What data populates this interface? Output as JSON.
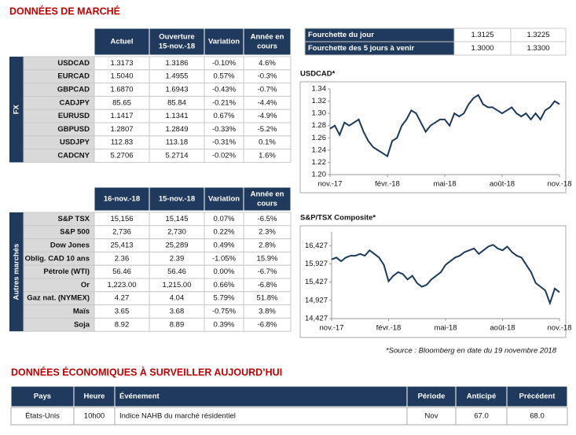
{
  "header": {
    "title": "DONNÉES DE MARCHÉ"
  },
  "fx_table": {
    "side_label": "FX",
    "columns": [
      [
        "Actuel"
      ],
      [
        "Ouverture",
        "15-nov.-18"
      ],
      [
        "Variation"
      ],
      [
        "Année en",
        "cours"
      ]
    ],
    "rows": [
      [
        "USDCAD",
        "1.3173",
        "1.3186",
        "-0.10%",
        "4.6%"
      ],
      [
        "EURCAD",
        "1.5040",
        "1.4955",
        "0.57%",
        "-0.3%"
      ],
      [
        "GBPCAD",
        "1.6870",
        "1.6943",
        "-0.43%",
        "-0.7%"
      ],
      [
        "CADJPY",
        "85.65",
        "85.84",
        "-0.21%",
        "-4.4%"
      ],
      [
        "EURUSD",
        "1.1417",
        "1.1341",
        "0.67%",
        "-4.9%"
      ],
      [
        "GBPUSD",
        "1.2807",
        "1.2849",
        "-0.33%",
        "-5.2%"
      ],
      [
        "USDJPY",
        "112.83",
        "113.18",
        "-0.31%",
        "0.1%"
      ],
      [
        "CADCNY",
        "5.2706",
        "5.2714",
        "-0.02%",
        "1.6%"
      ]
    ]
  },
  "range_table": {
    "rows": [
      [
        "Fourchette du jour",
        "1.3125",
        "1.3225"
      ],
      [
        "Fourchette des 5 jours à venir",
        "1.3000",
        "1.3300"
      ]
    ]
  },
  "markets_table": {
    "side_label": "Autres marchés",
    "columns": [
      [
        "16-nov.-18"
      ],
      [
        "15-nov.-18"
      ],
      [
        "Variation"
      ],
      [
        "Année en",
        "cours"
      ]
    ],
    "rows": [
      [
        "S&P TSX",
        "15,156",
        "15,145",
        "0.07%",
        "-6.5%"
      ],
      [
        "S&P 500",
        "2,736",
        "2,730",
        "0.22%",
        "2.3%"
      ],
      [
        "Dow Jones",
        "25,413",
        "25,289",
        "0.49%",
        "2.8%"
      ],
      [
        "Oblig. CAD 10 ans",
        "2.36",
        "2.39",
        "-1.05%",
        "15.9%"
      ],
      [
        "Pétrole (WTI)",
        "56.46",
        "56.46",
        "0.00%",
        "-6.7%"
      ],
      [
        "Or",
        "1,223.00",
        "1,215.00",
        "0.66%",
        "-6.8%"
      ],
      [
        "Gaz nat. (NYMEX)",
        "4.27",
        "4.04",
        "5.79%",
        "51.8%"
      ],
      [
        "Maïs",
        "3.65",
        "3.68",
        "-0.75%",
        "3.8%"
      ],
      [
        "Soja",
        "8.92",
        "8.89",
        "0.39%",
        "-6.8%"
      ]
    ]
  },
  "chart_data": [
    {
      "type": "line",
      "title": "USDCAD*",
      "categories": [
        "nov.-17",
        null,
        null,
        null,
        null,
        null,
        null,
        null,
        null,
        null,
        null,
        null,
        "févr.-18",
        null,
        null,
        null,
        null,
        null,
        null,
        null,
        null,
        null,
        null,
        null,
        "mai-18",
        null,
        null,
        null,
        null,
        null,
        null,
        null,
        null,
        null,
        null,
        null,
        "août-18",
        null,
        null,
        null,
        null,
        null,
        null,
        null,
        null,
        null,
        null,
        null,
        "nov.-18"
      ],
      "series": [
        {
          "color": "#1b3a5a",
          "values": [
            1.275,
            1.28,
            1.265,
            1.285,
            1.28,
            1.285,
            1.29,
            1.27,
            1.255,
            1.245,
            1.24,
            1.235,
            1.23,
            1.255,
            1.26,
            1.28,
            1.29,
            1.305,
            1.3,
            1.285,
            1.27,
            1.28,
            1.285,
            1.29,
            1.29,
            1.28,
            1.3,
            1.295,
            1.3,
            1.315,
            1.325,
            1.33,
            1.315,
            1.31,
            1.31,
            1.305,
            1.3,
            1.305,
            1.31,
            1.3,
            1.295,
            1.3,
            1.29,
            1.3,
            1.29,
            1.305,
            1.31,
            1.32,
            1.315
          ]
        }
      ],
      "ylim": [
        1.2,
        1.34
      ],
      "yticks": [
        {
          "value": 1.2,
          "label": "1.20"
        },
        1.22,
        1.24,
        1.26,
        1.28,
        {
          "value": 1.3,
          "label": "1.30"
        },
        1.32,
        1.34
      ]
    },
    {
      "type": "line",
      "title": "S&P/TSX Composite*",
      "categories": [
        "nov.-17",
        null,
        null,
        null,
        null,
        null,
        null,
        null,
        null,
        null,
        null,
        null,
        "févr.-18",
        null,
        null,
        null,
        null,
        null,
        null,
        null,
        null,
        null,
        null,
        null,
        "mai-18",
        null,
        null,
        null,
        null,
        null,
        null,
        null,
        null,
        null,
        null,
        null,
        "août-18",
        null,
        null,
        null,
        null,
        null,
        null,
        null,
        null,
        null,
        null,
        null,
        "nov.-18"
      ],
      "series": [
        {
          "color": "#1b3a5a",
          "values": [
            16050,
            16100,
            16000,
            16100,
            16150,
            16150,
            16200,
            16150,
            16300,
            16200,
            16100,
            15900,
            15450,
            15600,
            15700,
            15650,
            15500,
            15600,
            15400,
            15300,
            15350,
            15500,
            15600,
            15700,
            15900,
            16000,
            16100,
            16150,
            16250,
            16300,
            16350,
            16200,
            16300,
            16400,
            16450,
            16350,
            16300,
            16400,
            16250,
            16150,
            16100,
            15900,
            15700,
            15400,
            15300,
            15200,
            14850,
            15250,
            15150
          ]
        }
      ],
      "ylim": [
        14427,
        16800
      ],
      "yticks": [
        {
          "value": 14427,
          "label": "14,427"
        },
        {
          "value": 14927,
          "label": "14,927"
        },
        {
          "value": 15427,
          "label": "15,427"
        },
        {
          "value": 15927,
          "label": "15,927"
        },
        {
          "value": 16427,
          "label": "16,427"
        }
      ]
    }
  ],
  "source_note": "*Source : Bloomberg en date du  19 novembre 2018",
  "economic": {
    "title": "DONNÉES ÉCONOMIQUES À SURVEILLER AUJOURD’HUI",
    "columns": [
      "Pays",
      "Heure",
      "Événement",
      "Période",
      "Anticipé",
      "Précédent"
    ],
    "rows": [
      [
        "États-Unis",
        "10h00",
        "Indice NAHB du marché résidentiel",
        "Nov",
        "67.0",
        "68.0"
      ]
    ]
  }
}
